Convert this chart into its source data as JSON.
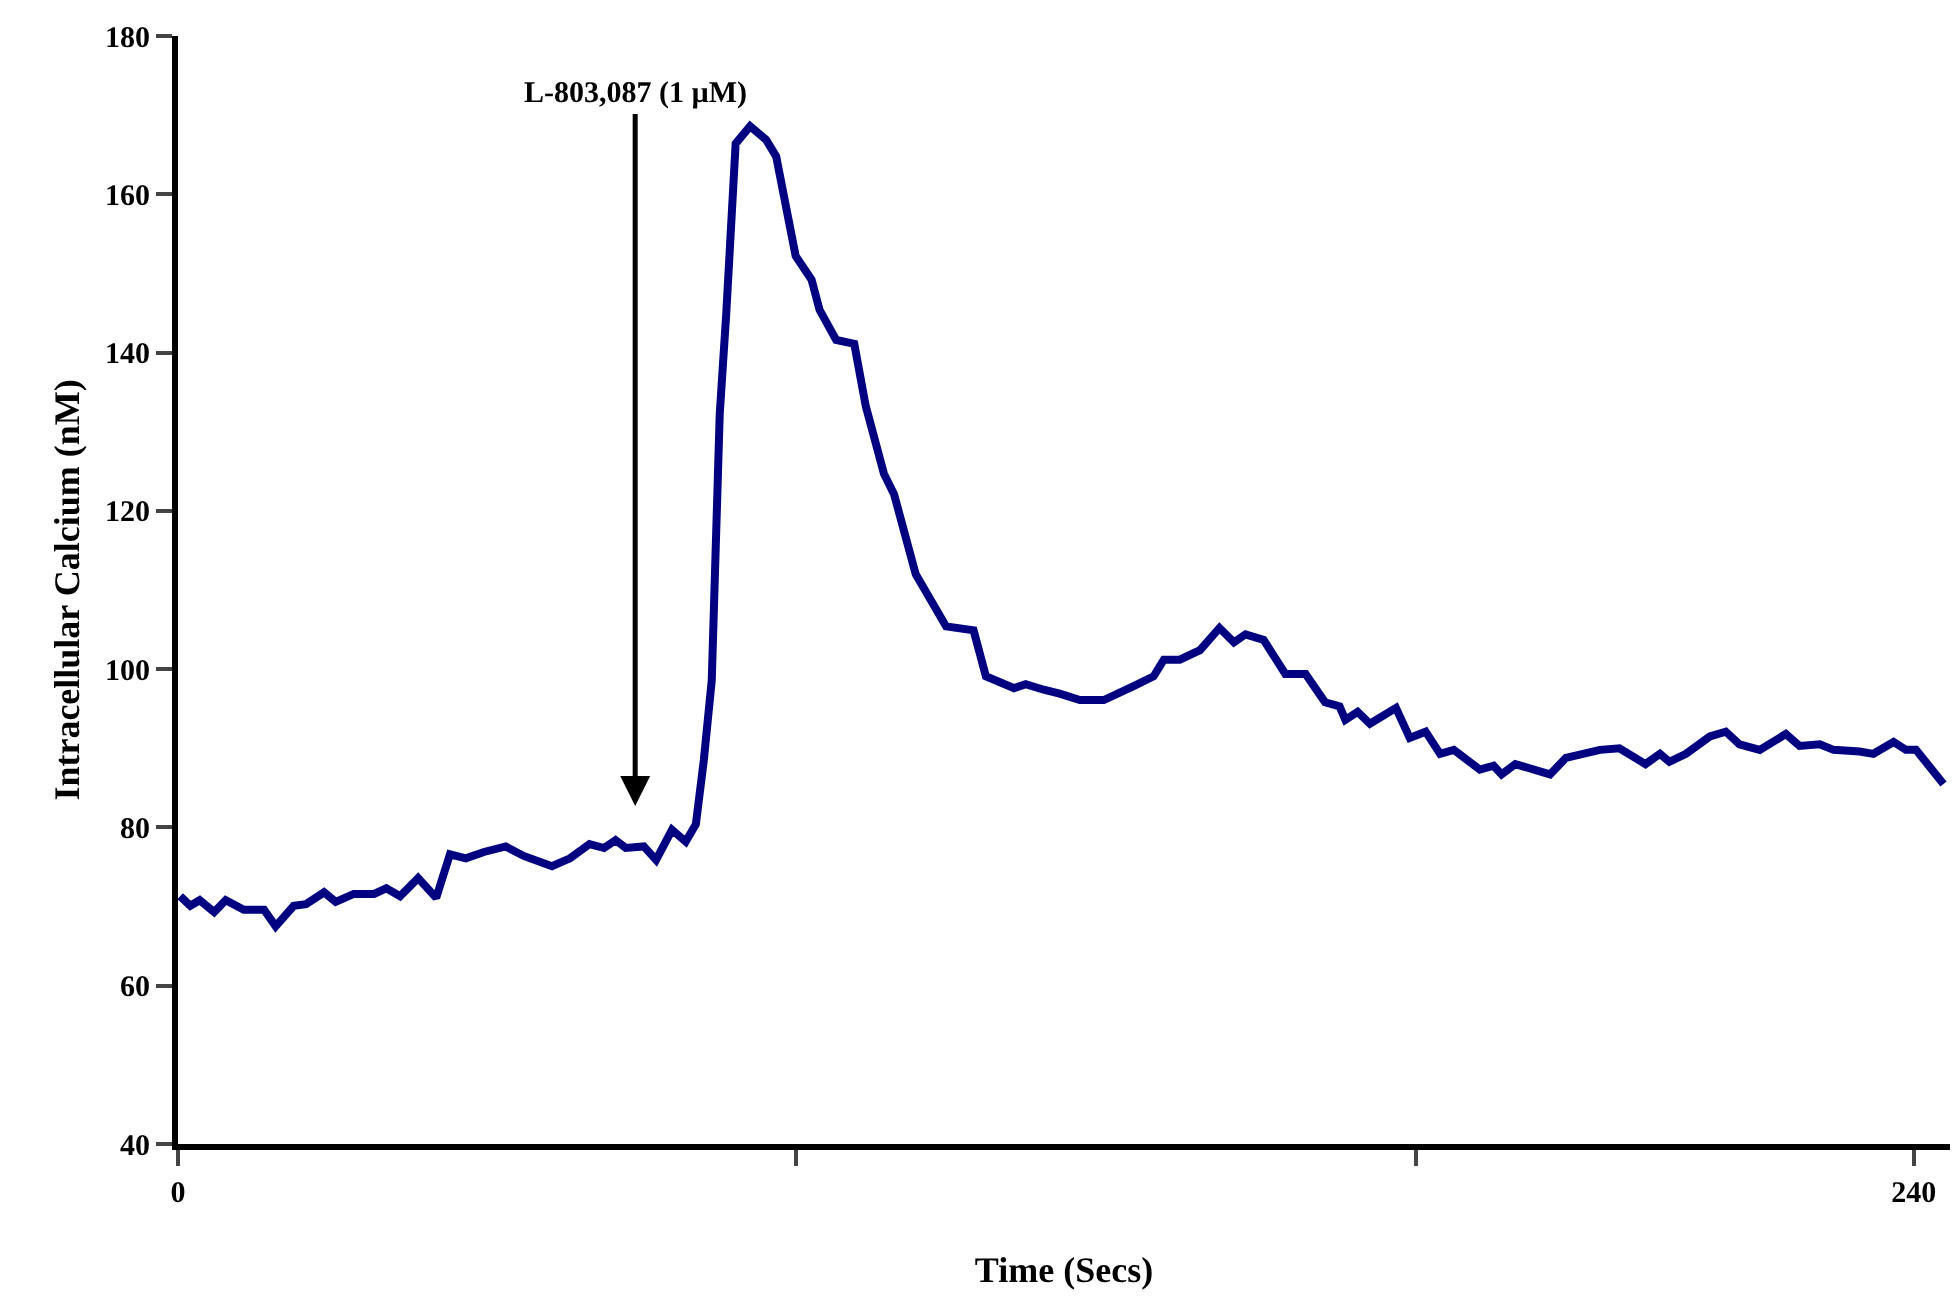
{
  "chart_data": {
    "type": "line",
    "xlabel": "Time (Secs)",
    "ylabel": "Intracellular Calcium (nM)",
    "x": [
      0.3,
      1.7,
      3.0,
      5.0,
      6.6,
      9.1,
      11.9,
      13.5,
      16.0,
      17.7,
      20.2,
      21.8,
      24.3,
      27.1,
      28.8,
      30.7,
      33.2,
      35.7,
      37.6,
      39.8,
      42.3,
      45.3,
      47.8,
      51.7,
      54.2,
      56.9,
      58.9,
      60.5,
      61.9,
      64.4,
      66.1,
      68.3,
      70.2,
      71.6,
      72.7,
      73.8,
      74.9,
      75.8,
      77.1,
      79.1,
      81.3,
      82.7,
      85.4,
      87.6,
      88.7,
      91.0,
      93.5,
      95.1,
      97.6,
      99.0,
      102.0,
      106.2,
      110.0,
      111.7,
      115.6,
      117.2,
      119.7,
      121.9,
      124.7,
      128.0,
      132.2,
      134.9,
      136.3,
      138.5,
      141.3,
      144.0,
      146.0,
      147.6,
      150.1,
      153.1,
      155.9,
      158.6,
      160.6,
      161.4,
      163.1,
      164.8,
      168.4,
      170.3,
      172.5,
      174.5,
      176.4,
      180.0,
      181.9,
      183.0,
      184.9,
      189.7,
      191.9,
      196.6,
      199.3,
      202.9,
      204.9,
      206.2,
      208.5,
      211.8,
      214.0,
      215.9,
      218.7,
      222.3,
      224.2,
      227.0,
      228.9,
      232.5,
      234.4,
      237.2,
      238.9,
      240.3,
      244.1
    ],
    "series": [
      {
        "color": "#000080",
        "values": [
          71.3,
          70.1,
          70.8,
          69.3,
          70.8,
          69.6,
          69.6,
          67.5,
          70.1,
          70.3,
          71.8,
          70.6,
          71.6,
          71.6,
          72.3,
          71.3,
          73.6,
          71.1,
          76.6,
          76.1,
          76.9,
          77.6,
          76.4,
          75.1,
          76.1,
          77.9,
          77.4,
          78.4,
          77.4,
          77.6,
          75.9,
          79.7,
          78.2,
          80.4,
          88.5,
          98.6,
          132.2,
          144.9,
          166.4,
          168.6,
          166.9,
          164.8,
          152.2,
          149.2,
          145.4,
          141.6,
          141.1,
          133.2,
          124.7,
          122.1,
          112.0,
          105.4,
          104.9,
          99.1,
          97.6,
          98.1,
          97.4,
          96.9,
          96.1,
          96.1,
          97.9,
          99.1,
          101.2,
          101.2,
          102.4,
          105.2,
          103.4,
          104.4,
          103.7,
          99.4,
          99.4,
          95.8,
          95.3,
          93.6,
          94.6,
          93.1,
          95.1,
          91.3,
          92.1,
          89.3,
          89.8,
          87.3,
          87.8,
          86.7,
          88.0,
          86.7,
          88.8,
          89.8,
          90.0,
          88.0,
          89.3,
          88.3,
          89.3,
          91.5,
          92.1,
          90.5,
          89.8,
          91.8,
          90.3,
          90.5,
          89.8,
          89.6,
          89.3,
          90.8,
          89.8,
          89.8,
          85.5
        ]
      }
    ],
    "xlim": [
      0,
      245
    ],
    "xticks": [
      0,
      {
        "value": 85.4,
        "label": null
      },
      {
        "value": 171.1,
        "label": null
      },
      240
    ],
    "ylim": [
      40,
      180
    ],
    "yticks": [
      40,
      60,
      80,
      100,
      120,
      140,
      160,
      180
    ],
    "annotations": [
      "L-803,087 (1 µM)"
    ],
    "marker": "none",
    "line_style": "solid"
  }
}
